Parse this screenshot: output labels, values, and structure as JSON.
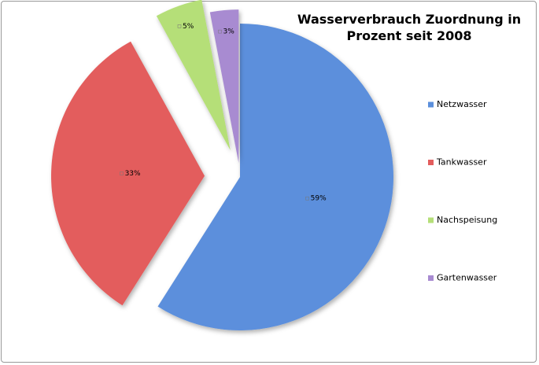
{
  "chart_data": {
    "type": "pie",
    "title": "Wasserverbrauch Zuordnung in Prozent seit 2008",
    "categories": [
      "Netzwasser",
      "Tankwasser",
      "Nachspeisung",
      "Gartenwasser"
    ],
    "values": [
      59,
      33,
      5,
      3
    ],
    "value_labels": [
      "59%",
      "33%",
      "5%",
      "3%"
    ],
    "colors": [
      "#5b8fdc",
      "#e35d5d",
      "#b5df78",
      "#a88bd1"
    ],
    "legend": "right"
  }
}
